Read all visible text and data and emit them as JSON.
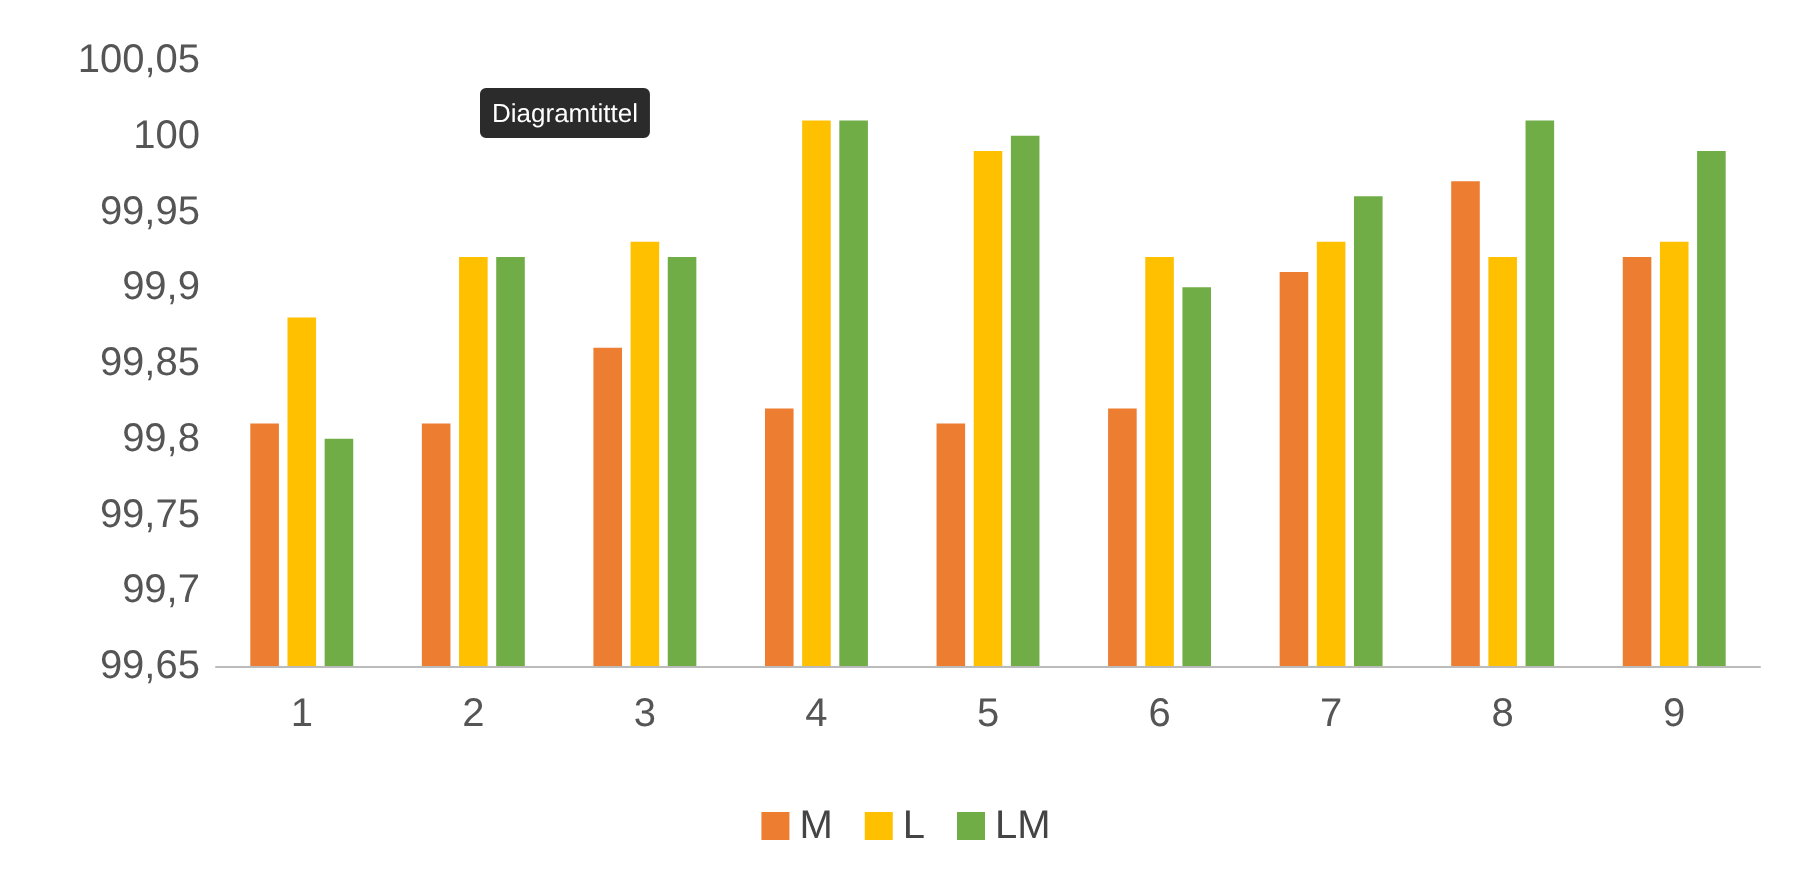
{
  "chart_data": {
    "type": "bar",
    "categories": [
      "1",
      "2",
      "3",
      "4",
      "5",
      "6",
      "7",
      "8",
      "9"
    ],
    "series": [
      {
        "name": "M",
        "color": "#ed7d31",
        "values": [
          99.81,
          99.81,
          99.86,
          99.82,
          99.81,
          99.82,
          99.91,
          99.97,
          99.92
        ]
      },
      {
        "name": "L",
        "color": "#ffc000",
        "values": [
          99.88,
          99.92,
          99.93,
          100.01,
          99.99,
          99.92,
          99.93,
          99.92,
          99.93
        ]
      },
      {
        "name": "LM",
        "color": "#70ad47",
        "values": [
          99.8,
          99.92,
          99.92,
          100.01,
          100.0,
          99.9,
          99.96,
          100.01,
          99.99
        ]
      }
    ],
    "ylim": [
      99.65,
      100.05
    ],
    "yticks": [
      {
        "value": 99.65,
        "label": "99,65"
      },
      {
        "value": 99.7,
        "label": "99,7"
      },
      {
        "value": 99.75,
        "label": "99,75"
      },
      {
        "value": 99.8,
        "label": "99,8"
      },
      {
        "value": 99.85,
        "label": "99,85"
      },
      {
        "value": 99.9,
        "label": "99,9"
      },
      {
        "value": 99.95,
        "label": "99,95"
      },
      {
        "value": 100,
        "label": "100"
      },
      {
        "value": 100.05,
        "label": "100,05"
      }
    ],
    "grid": false,
    "legend": "bottom",
    "annotations": [
      "Diagramtittel"
    ]
  }
}
